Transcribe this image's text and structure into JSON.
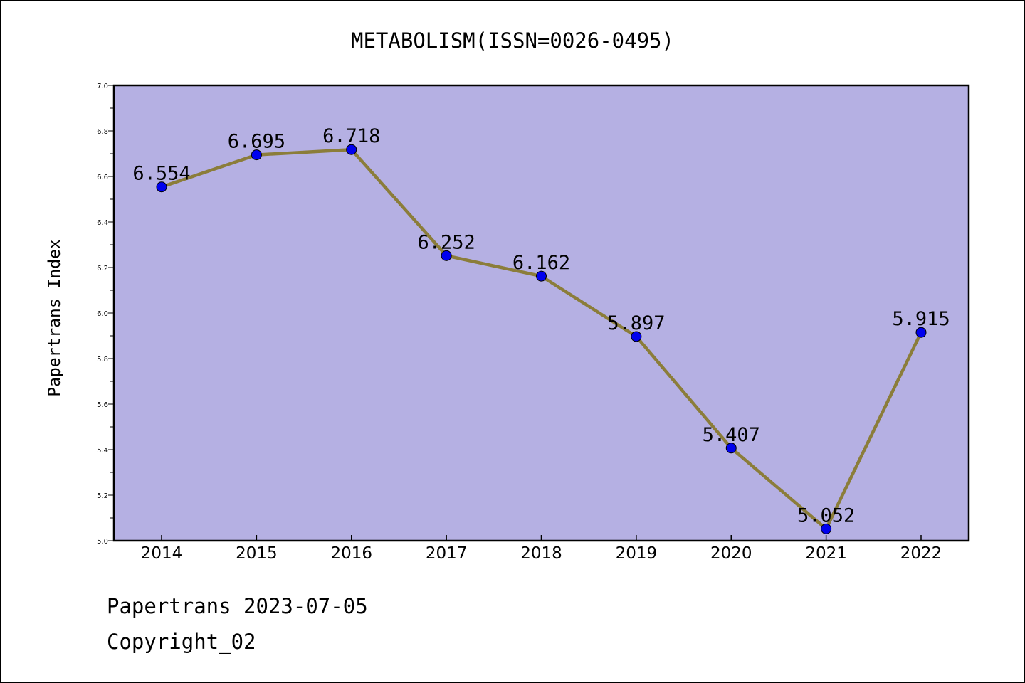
{
  "chart_data": {
    "type": "line",
    "title": "METABOLISM(ISSN=0026-0495)",
    "xlabel": "",
    "ylabel": "Papertrans Index",
    "x": [
      "2014",
      "2015",
      "2016",
      "2017",
      "2018",
      "2019",
      "2020",
      "2021",
      "2022"
    ],
    "series": [
      {
        "values": [
          6.554,
          6.695,
          6.718,
          6.252,
          6.162,
          5.897,
          5.407,
          5.052,
          5.915
        ],
        "labels": [
          "6.554",
          "6.695",
          "6.718",
          "6.252",
          "6.162",
          "5.897",
          "5.407",
          "5.052",
          "5.915"
        ]
      }
    ],
    "ylim": [
      5.0,
      7.0
    ],
    "yticks": [
      "5.0",
      "5.2",
      "5.4",
      "5.6",
      "5.8",
      "6.0",
      "6.2",
      "6.4",
      "6.6",
      "6.8",
      "7.0"
    ],
    "grid": false,
    "colors": {
      "plot_background": "#b5b0e3",
      "line": "#8b7d3a",
      "marker": "#0000ee",
      "axes": "#000000"
    }
  },
  "footer": {
    "line1": "Papertrans 2023-07-05",
    "line2": "Copyright_02"
  }
}
